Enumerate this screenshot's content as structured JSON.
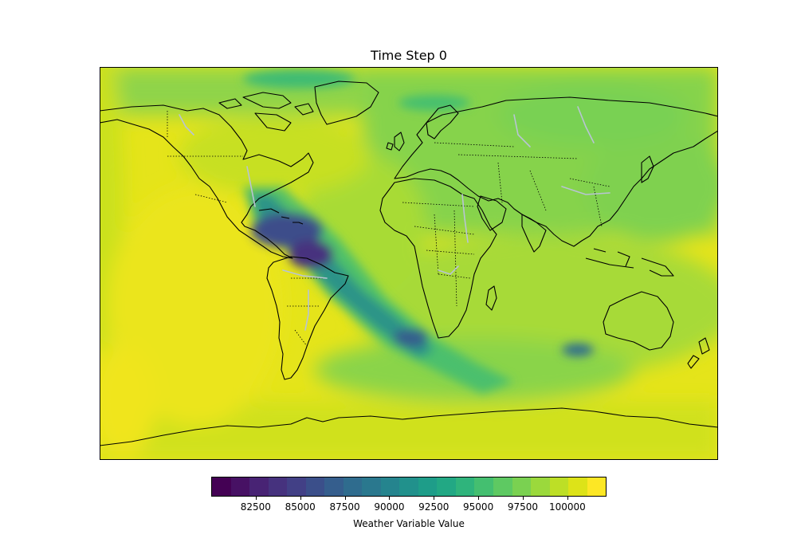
{
  "title": "Time Step 0",
  "colorbar": {
    "label": "Weather Variable Value",
    "min": 80000,
    "max": 102200,
    "ticks": [
      82500,
      85000,
      87500,
      90000,
      92500,
      95000,
      97500,
      100000
    ],
    "tick_labels": [
      "82500",
      "85000",
      "87500",
      "90000",
      "92500",
      "95000",
      "97500",
      "100000"
    ],
    "colors": [
      "#440154",
      "#471164",
      "#482374",
      "#46327e",
      "#424086",
      "#3b4f8a",
      "#355e8d",
      "#2f6c8e",
      "#2a788e",
      "#25848e",
      "#21918c",
      "#1e9d89",
      "#22a884",
      "#2fb47c",
      "#44bf70",
      "#5ec962",
      "#7ad151",
      "#9bd93c",
      "#bddf26",
      "#dde318",
      "#fde725"
    ]
  },
  "map": {
    "projection": "PlateCarree",
    "features": [
      "coastlines",
      "borders",
      "rivers"
    ],
    "colors": {
      "coastline": "#000000",
      "border": "#000000",
      "river": "#b8c4d4",
      "background": "#e7e419"
    }
  }
}
